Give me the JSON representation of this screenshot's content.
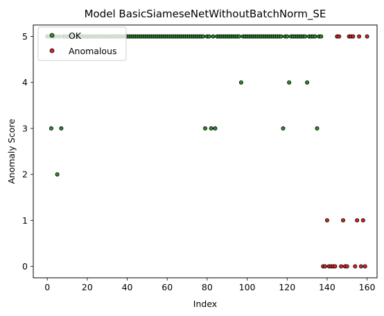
{
  "chart_data": {
    "type": "scatter",
    "title": "Model BasicSiameseNetWithoutBatchNorm_SE",
    "xlabel": "Index",
    "ylabel": "Anomaly Score",
    "xlim": [
      -7,
      165
    ],
    "ylim": [
      -0.25,
      5.25
    ],
    "xticks": [
      0,
      20,
      40,
      60,
      80,
      100,
      120,
      140,
      160
    ],
    "yticks": [
      0,
      1,
      2,
      3,
      4,
      5
    ],
    "grid": false,
    "legend_position": "upper-left",
    "series": [
      {
        "name": "OK",
        "color": "#2e8b2e",
        "edge_color": "#000000",
        "points": [
          [
            0,
            5
          ],
          [
            1,
            5
          ],
          [
            2,
            3
          ],
          [
            3,
            5
          ],
          [
            4,
            5
          ],
          [
            5,
            2
          ],
          [
            6,
            5
          ],
          [
            7,
            3
          ],
          [
            8,
            5
          ],
          [
            9,
            5
          ],
          [
            10,
            5
          ],
          [
            11,
            5
          ],
          [
            12,
            5
          ],
          [
            13,
            5
          ],
          [
            14,
            5
          ],
          [
            15,
            5
          ],
          [
            16,
            5
          ],
          [
            17,
            5
          ],
          [
            18,
            5
          ],
          [
            19,
            5
          ],
          [
            20,
            5
          ],
          [
            21,
            5
          ],
          [
            22,
            5
          ],
          [
            23,
            5
          ],
          [
            24,
            5
          ],
          [
            25,
            5
          ],
          [
            26,
            5
          ],
          [
            27,
            5
          ],
          [
            28,
            5
          ],
          [
            29,
            5
          ],
          [
            30,
            5
          ],
          [
            31,
            5
          ],
          [
            32,
            5
          ],
          [
            33,
            5
          ],
          [
            34,
            5
          ],
          [
            35,
            5
          ],
          [
            36,
            5
          ],
          [
            37,
            5
          ],
          [
            38,
            5
          ],
          [
            39,
            5
          ],
          [
            40,
            5
          ],
          [
            41,
            5
          ],
          [
            42,
            5
          ],
          [
            43,
            5
          ],
          [
            44,
            5
          ],
          [
            45,
            5
          ],
          [
            46,
            5
          ],
          [
            47,
            5
          ],
          [
            48,
            5
          ],
          [
            49,
            5
          ],
          [
            50,
            5
          ],
          [
            51,
            5
          ],
          [
            52,
            5
          ],
          [
            53,
            5
          ],
          [
            54,
            5
          ],
          [
            55,
            5
          ],
          [
            56,
            5
          ],
          [
            57,
            5
          ],
          [
            58,
            5
          ],
          [
            59,
            5
          ],
          [
            60,
            5
          ],
          [
            61,
            5
          ],
          [
            62,
            5
          ],
          [
            63,
            5
          ],
          [
            64,
            5
          ],
          [
            65,
            5
          ],
          [
            66,
            5
          ],
          [
            67,
            5
          ],
          [
            68,
            5
          ],
          [
            69,
            5
          ],
          [
            70,
            5
          ],
          [
            71,
            5
          ],
          [
            72,
            5
          ],
          [
            73,
            5
          ],
          [
            74,
            5
          ],
          [
            75,
            5
          ],
          [
            76,
            5
          ],
          [
            77,
            5
          ],
          [
            78,
            5
          ],
          [
            79,
            3
          ],
          [
            80,
            5
          ],
          [
            81,
            5
          ],
          [
            82,
            3
          ],
          [
            83,
            5
          ],
          [
            84,
            3
          ],
          [
            85,
            5
          ],
          [
            86,
            5
          ],
          [
            87,
            5
          ],
          [
            88,
            5
          ],
          [
            89,
            5
          ],
          [
            90,
            5
          ],
          [
            91,
            5
          ],
          [
            92,
            5
          ],
          [
            93,
            5
          ],
          [
            94,
            5
          ],
          [
            95,
            5
          ],
          [
            96,
            5
          ],
          [
            97,
            4
          ],
          [
            98,
            5
          ],
          [
            99,
            5
          ],
          [
            100,
            5
          ],
          [
            101,
            5
          ],
          [
            102,
            5
          ],
          [
            103,
            5
          ],
          [
            104,
            5
          ],
          [
            105,
            5
          ],
          [
            106,
            5
          ],
          [
            107,
            5
          ],
          [
            108,
            5
          ],
          [
            109,
            5
          ],
          [
            110,
            5
          ],
          [
            111,
            5
          ],
          [
            112,
            5
          ],
          [
            113,
            5
          ],
          [
            114,
            5
          ],
          [
            115,
            5
          ],
          [
            116,
            5
          ],
          [
            117,
            5
          ],
          [
            118,
            3
          ],
          [
            119,
            5
          ],
          [
            120,
            5
          ],
          [
            121,
            4
          ],
          [
            122,
            5
          ],
          [
            123,
            5
          ],
          [
            124,
            5
          ],
          [
            125,
            5
          ],
          [
            126,
            5
          ],
          [
            127,
            5
          ],
          [
            128,
            5
          ],
          [
            129,
            5
          ],
          [
            130,
            4
          ],
          [
            131,
            5
          ],
          [
            132,
            5
          ],
          [
            133,
            5
          ],
          [
            134,
            5
          ],
          [
            135,
            3
          ],
          [
            136,
            5
          ],
          [
            137,
            5
          ]
        ]
      },
      {
        "name": "Anomalous",
        "color": "#d62728",
        "edge_color": "#000000",
        "points": [
          [
            138,
            0
          ],
          [
            139,
            0
          ],
          [
            140,
            1
          ],
          [
            141,
            0
          ],
          [
            142,
            0
          ],
          [
            143,
            0
          ],
          [
            144,
            0
          ],
          [
            145,
            5
          ],
          [
            146,
            5
          ],
          [
            147,
            0
          ],
          [
            148,
            1
          ],
          [
            149,
            0
          ],
          [
            150,
            0
          ],
          [
            151,
            5
          ],
          [
            152,
            5
          ],
          [
            153,
            5
          ],
          [
            154,
            0
          ],
          [
            155,
            1
          ],
          [
            156,
            5
          ],
          [
            157,
            0
          ],
          [
            158,
            1
          ],
          [
            159,
            0
          ],
          [
            160,
            5
          ]
        ]
      }
    ]
  }
}
